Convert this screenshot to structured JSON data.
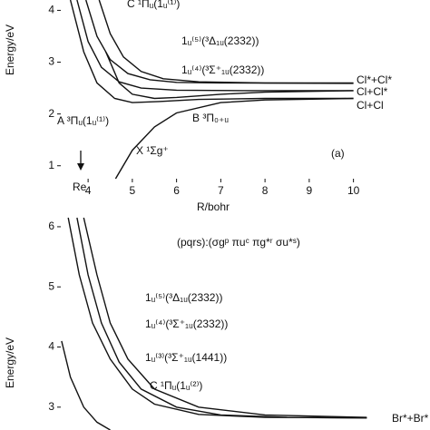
{
  "chart_data": [
    {
      "type": "line",
      "x_label": "R/bohr",
      "y_label": "Energy/eV",
      "xlim": [
        3.3,
        10.5
      ],
      "ylim": [
        0.75,
        4.2
      ],
      "xticks": [
        4,
        5,
        6,
        7,
        8,
        9,
        10
      ],
      "yticks": [
        1,
        2,
        3,
        4
      ],
      "annotations": [
        "Cl*+Cl*",
        "Cl+Cl*",
        "Cl+Cl",
        "(a)",
        "Re"
      ],
      "series": [
        {
          "name": "C ¹Πᵤ(1ᵤ⁽¹⁾)",
          "color": "#111111",
          "x": [
            4.25,
            4.5,
            4.8,
            5.2,
            5.7,
            6.5,
            8,
            10
          ],
          "values": [
            4.2,
            3.55,
            3.1,
            2.82,
            2.68,
            2.62,
            2.6,
            2.6
          ]
        },
        {
          "name": "1ᵤ⁽⁵⁾(³Δ₁ᵤ(2332))",
          "color": "#111111",
          "x": [
            3.95,
            4.2,
            4.5,
            4.9,
            5.4,
            6,
            7,
            10
          ],
          "values": [
            4.2,
            3.5,
            3.05,
            2.78,
            2.66,
            2.61,
            2.6,
            2.59
          ]
        },
        {
          "name": "1ᵤ⁽⁴⁾(³Σ⁺₁ᵤ(2332))",
          "color": "#111111",
          "x": [
            3.75,
            4,
            4.3,
            4.7,
            5.2,
            6,
            7.5,
            10
          ],
          "values": [
            4.2,
            3.4,
            2.9,
            2.62,
            2.5,
            2.46,
            2.45,
            2.45
          ]
        },
        {
          "name": "A ³Πᵤ(1ᵤ⁽¹⁾)",
          "color": "#111111",
          "x": [
            3.6,
            3.9,
            4.2,
            4.6,
            5,
            5.6,
            6.5,
            8,
            10
          ],
          "values": [
            4.2,
            3.2,
            2.6,
            2.3,
            2.22,
            2.24,
            2.28,
            2.3,
            2.3
          ]
        },
        {
          "name": "B ³Π₀₊ᵤ",
          "color": "#111111",
          "x": [
            4.4,
            4.7,
            5,
            5.5,
            6,
            7,
            8,
            10
          ],
          "values": [
            3.2,
            2.6,
            2.38,
            2.3,
            2.32,
            2.38,
            2.42,
            2.45
          ]
        },
        {
          "name": "X ¹Σg⁺",
          "color": "#111111",
          "x": [
            4.62,
            5,
            5.5,
            6,
            7,
            8,
            10
          ],
          "values": [
            0.75,
            1.3,
            1.75,
            2.02,
            2.22,
            2.27,
            2.3
          ]
        }
      ]
    },
    {
      "type": "line",
      "y_label": "Energy/eV",
      "xlim": [
        3.3,
        10.5
      ],
      "ylim": [
        2.62,
        6.15
      ],
      "yticks": [
        3,
        4,
        5,
        6
      ],
      "annotations": [
        "(pqrs):(σgᵖ πuᶜ πg*ʳ σu*ˢ)",
        "Br*+Br*"
      ],
      "series": [
        {
          "name": "1ᵤ⁽⁵⁾(³Δ₁ᵤ(2332))",
          "color": "#111111",
          "x": [
            3.55,
            3.8,
            4.1,
            4.5,
            5,
            5.5,
            6.5,
            8,
            10.3
          ],
          "values": [
            6.15,
            5.2,
            4.4,
            3.8,
            3.3,
            3.05,
            2.88,
            2.83,
            2.82
          ]
        },
        {
          "name": "1ᵤ⁽⁴⁾(³Σ⁺₁ᵤ(2332))",
          "color": "#111111",
          "x": [
            3.75,
            4,
            4.3,
            4.7,
            5.2,
            6,
            7,
            8.5,
            10.3
          ],
          "values": [
            6.15,
            5.2,
            4.4,
            3.75,
            3.3,
            3,
            2.87,
            2.83,
            2.82
          ]
        },
        {
          "name": "1ᵤ⁽³⁾(³Σ⁺₁ᵤ(1441))",
          "color": "#111111",
          "x": [
            3.4,
            3.6,
            3.9,
            4.2,
            4.5
          ],
          "values": [
            4.1,
            3.5,
            3,
            2.75,
            2.62
          ]
        },
        {
          "name": "C ¹Πᵤ(1ᵤ⁽²⁾)",
          "color": "#111111",
          "x": [
            3.9,
            4.2,
            4.5,
            4.9,
            5.5,
            6.5,
            8,
            10.3
          ],
          "values": [
            6.15,
            5.2,
            4.4,
            3.8,
            3.3,
            3,
            2.87,
            2.83
          ]
        }
      ]
    }
  ]
}
